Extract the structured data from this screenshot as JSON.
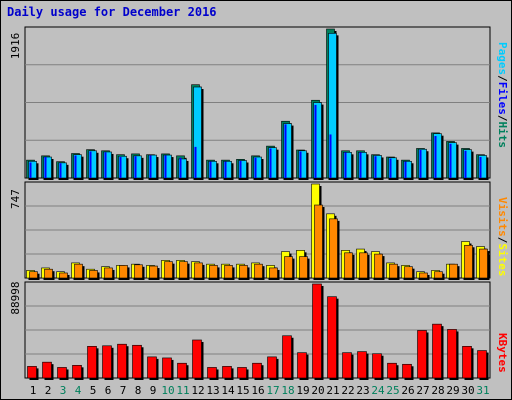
{
  "title": "Daily usage for December 2016",
  "colors": {
    "pages": "#00ccff",
    "files": "#0000ff",
    "hits": "#00805c",
    "sites": "#ffff00",
    "visits": "#ff8800",
    "kbytes": "#ff0000",
    "title": "#0000cc",
    "weekend_day": "#00805c",
    "plot_bg": "#c0c0c0"
  },
  "legend": {
    "top": {
      "pages": "Pages",
      "files": "Files",
      "hits": "Hits",
      "sep": "/"
    },
    "middle": {
      "sites": "Sites",
      "visits": "Visits",
      "sep": "/"
    },
    "bottom": {
      "kbytes": "KBytes"
    }
  },
  "chart_data": {
    "type": "bar",
    "title": "Daily usage for December 2016",
    "x": [
      "1",
      "2",
      "3",
      "4",
      "5",
      "6",
      "7",
      "8",
      "9",
      "10",
      "11",
      "12",
      "13",
      "14",
      "15",
      "16",
      "17",
      "18",
      "19",
      "20",
      "21",
      "22",
      "23",
      "24",
      "25",
      "26",
      "27",
      "28",
      "29",
      "30",
      "31"
    ],
    "weekend_days": [
      "3",
      "4",
      "10",
      "11",
      "17",
      "18",
      "24",
      "25",
      "31"
    ],
    "panels": [
      {
        "name": "hits-files-pages",
        "max_label": "1916",
        "ymax": 1916,
        "grid": true,
        "series": [
          {
            "name": "Hits",
            "values": [
              230,
              285,
              210,
              315,
              365,
              350,
              300,
              310,
              300,
              310,
              285,
              1200,
              230,
              230,
              240,
              285,
              410,
              730,
              360,
              1000,
              1916,
              350,
              350,
              300,
              270,
              230,
              380,
              580,
              470,
              380,
              300
            ]
          },
          {
            "name": "Files",
            "values": [
              200,
              270,
              190,
              290,
              340,
              330,
              270,
              280,
              290,
              290,
              260,
              400,
              210,
              210,
              220,
              260,
              380,
              690,
              340,
              940,
              560,
              330,
              330,
              280,
              250,
              210,
              360,
              540,
              440,
              350,
              270
            ]
          },
          {
            "name": "Pages",
            "values": [
              215,
              270,
              195,
              300,
              350,
              335,
              280,
              285,
              295,
              295,
              245,
              1170,
              215,
              215,
              225,
              270,
              390,
              700,
              350,
              970,
              1860,
              330,
              330,
              290,
              260,
              215,
              370,
              570,
              455,
              365,
              290
            ]
          }
        ]
      },
      {
        "name": "visits-sites",
        "max_label": "747",
        "ymax": 747,
        "grid": true,
        "series": [
          {
            "name": "Sites",
            "values": [
              60,
              80,
              50,
              120,
              70,
              90,
              100,
              110,
              100,
              140,
              140,
              130,
              110,
              110,
              110,
              120,
              100,
              210,
              220,
              747,
              510,
              220,
              230,
              210,
              120,
              100,
              50,
              60,
              110,
              290,
              250
            ]
          },
          {
            "name": "Visits",
            "values": [
              50,
              70,
              40,
              110,
              60,
              80,
              100,
              105,
              95,
              130,
              130,
              120,
              100,
              100,
              100,
              110,
              80,
              170,
              170,
              580,
              470,
              200,
              200,
              190,
              110,
              90,
              40,
              50,
              110,
              260,
              230
            ]
          }
        ]
      },
      {
        "name": "kbytes",
        "max_label": "88998",
        "ymax": 88998,
        "grid": true,
        "series": [
          {
            "name": "KBytes",
            "values": [
              11000,
              15000,
              10000,
              12000,
              30000,
              30500,
              32000,
              31000,
              20000,
              19000,
              14000,
              36000,
              10000,
              11000,
              10000,
              14000,
              20000,
              40000,
              24000,
              88998,
              77000,
              24000,
              25000,
              23000,
              14000,
              13000,
              45000,
              51000,
              46000,
              30000,
              26000
            ]
          }
        ]
      }
    ]
  }
}
